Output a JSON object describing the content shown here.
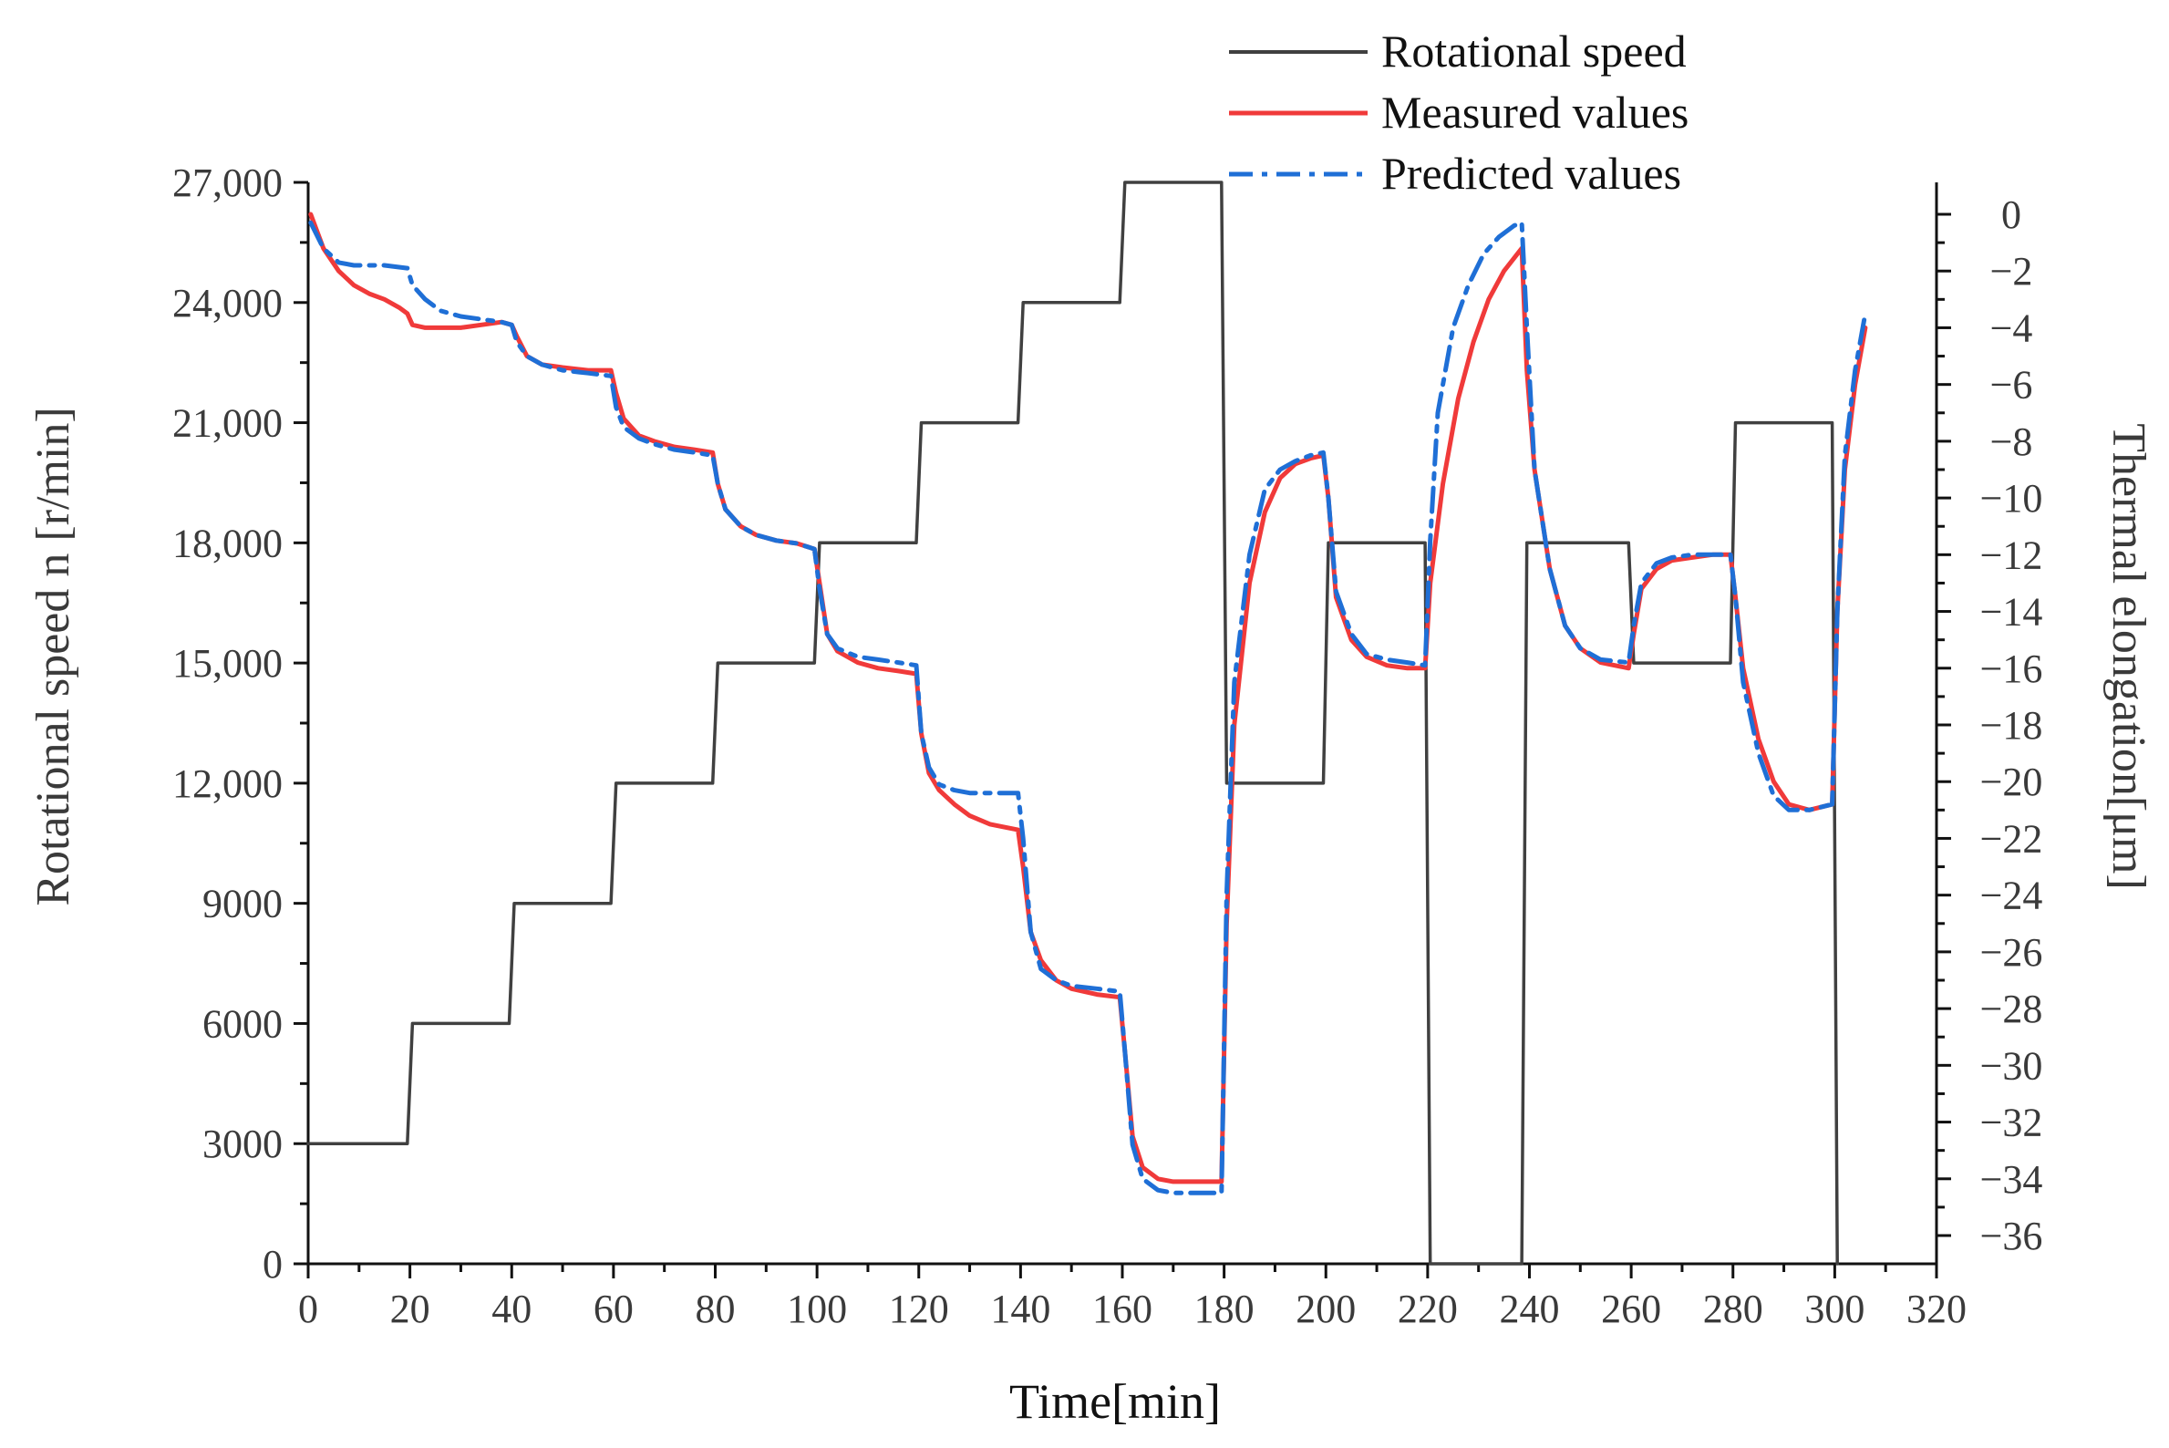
{
  "chart_data": {
    "type": "line",
    "title": "",
    "xlabel": "Time[min]",
    "ylabel_left": "Rotational speed n [r/min]",
    "ylabel_right": "Thermal elongation[μm]",
    "xlim": [
      0,
      320
    ],
    "ylim_left": [
      0,
      27000
    ],
    "ylim_right": [
      -38,
      1
    ],
    "x_ticks": [
      "0",
      "20",
      "40",
      "60",
      "80",
      "100",
      "120",
      "140",
      "160",
      "180",
      "200",
      "220",
      "240",
      "260",
      "280",
      "300",
      "320"
    ],
    "x_tick_values": [
      0,
      20,
      40,
      60,
      80,
      100,
      120,
      140,
      160,
      180,
      200,
      220,
      240,
      260,
      280,
      300,
      320
    ],
    "y_left_ticks": [
      "0",
      "3000",
      "6000",
      "9000",
      "12,000",
      "15,000",
      "18,000",
      "21,000",
      "24,000",
      "27,000"
    ],
    "y_left_tick_values": [
      0,
      3000,
      6000,
      9000,
      12000,
      15000,
      18000,
      21000,
      24000,
      27000
    ],
    "y_right_ticks": [
      "0",
      "−2",
      "−4",
      "−6",
      "−8",
      "−10",
      "−12",
      "−14",
      "−16",
      "−18",
      "−20",
      "−22",
      "−24",
      "−26",
      "−28",
      "−30",
      "−32",
      "−34",
      "−36"
    ],
    "y_right_tick_values": [
      0,
      -2,
      -4,
      -6,
      -8,
      -10,
      -12,
      -14,
      -16,
      -18,
      -20,
      -22,
      -24,
      -26,
      -28,
      -30,
      -32,
      -34,
      -36
    ],
    "grid": false,
    "legend_position": "top-right",
    "legend": [
      "Rotational speed",
      "Measured values",
      "Predicted values"
    ],
    "series": [
      {
        "name": "Rotational speed",
        "axis": "left",
        "color": "#404040",
        "style": "solid",
        "x": [
          0,
          19.5,
          20.5,
          39.5,
          40.5,
          59.5,
          60.5,
          79.5,
          80.5,
          99.5,
          100.5,
          119.5,
          120.5,
          139.5,
          140.5,
          159.5,
          160.5,
          179.5,
          180.5,
          199.5,
          200.5,
          219.5,
          220.5,
          238.5,
          239.5,
          259.5,
          260.5,
          279.5,
          280.5,
          299.5,
          300.5
        ],
        "values": [
          3000,
          3000,
          6000,
          6000,
          9000,
          9000,
          12000,
          12000,
          15000,
          15000,
          18000,
          18000,
          21000,
          21000,
          24000,
          24000,
          27000,
          27000,
          12000,
          12000,
          18000,
          18000,
          0,
          0,
          18000,
          18000,
          15000,
          15000,
          21000,
          21000,
          0
        ]
      },
      {
        "name": "Measured values",
        "axis": "right",
        "color": "#f03a3a",
        "style": "solid",
        "x": [
          0.5,
          3,
          6,
          9,
          12,
          15,
          18,
          19.5,
          20.5,
          23,
          26,
          30,
          34,
          38,
          40,
          41,
          43,
          46,
          50,
          55,
          59.5,
          60.5,
          62,
          65,
          68,
          72,
          76,
          79.5,
          80.5,
          82,
          85,
          88,
          92,
          96,
          99.5,
          100.5,
          102,
          104,
          108,
          112,
          116,
          119.5,
          120.5,
          122,
          124,
          127,
          130,
          134,
          139.5,
          140.5,
          142,
          144,
          147,
          150,
          155,
          159.5,
          160.5,
          162,
          164,
          167,
          170,
          174,
          179.5,
          180.5,
          182,
          185,
          188,
          191,
          194,
          197,
          199.5,
          200.5,
          202,
          205,
          208,
          212,
          216,
          219.5,
          220.5,
          223,
          226,
          229,
          232,
          235,
          238.5,
          239.5,
          241,
          244,
          247,
          250,
          254,
          259.5,
          260.5,
          262,
          265,
          268,
          272,
          276,
          279.5,
          280.5,
          282,
          285,
          288,
          291,
          295,
          299.5,
          300.5,
          302,
          304,
          306
        ],
        "values": [
          0,
          -1.2,
          -2.0,
          -2.5,
          -2.8,
          -3.0,
          -3.3,
          -3.5,
          -3.9,
          -4.0,
          -4.0,
          -4.0,
          -3.9,
          -3.8,
          -3.9,
          -4.3,
          -5.0,
          -5.3,
          -5.4,
          -5.5,
          -5.5,
          -6.3,
          -7.2,
          -7.8,
          -8.0,
          -8.2,
          -8.3,
          -8.4,
          -9.5,
          -10.4,
          -11.0,
          -11.3,
          -11.5,
          -11.6,
          -11.8,
          -13.0,
          -14.8,
          -15.4,
          -15.8,
          -16.0,
          -16.1,
          -16.2,
          -18.3,
          -19.7,
          -20.3,
          -20.8,
          -21.2,
          -21.5,
          -21.7,
          -23.0,
          -25.3,
          -26.3,
          -27.0,
          -27.3,
          -27.5,
          -27.6,
          -29.5,
          -32.5,
          -33.6,
          -34.0,
          -34.1,
          -34.1,
          -34.1,
          -25.0,
          -18.0,
          -13.0,
          -10.5,
          -9.3,
          -8.8,
          -8.6,
          -8.5,
          -10.0,
          -13.5,
          -15.0,
          -15.6,
          -15.9,
          -16.0,
          -16.0,
          -13.0,
          -9.5,
          -6.5,
          -4.5,
          -3.0,
          -2.0,
          -1.2,
          -5.5,
          -9.0,
          -12.5,
          -14.5,
          -15.3,
          -15.8,
          -16.0,
          -14.8,
          -13.2,
          -12.5,
          -12.2,
          -12.1,
          -12.0,
          -12.0,
          -13.5,
          -16.0,
          -18.5,
          -20.0,
          -20.8,
          -21.0,
          -20.8,
          -14.0,
          -9.0,
          -6.0,
          -4.0
        ]
      },
      {
        "name": "Predicted values",
        "axis": "right",
        "color": "#1f6fd6",
        "style": "dashdot",
        "x": [
          0.5,
          3,
          6,
          9,
          12,
          15,
          19.5,
          20.5,
          23,
          26,
          30,
          34,
          38,
          40,
          41,
          43,
          46,
          50,
          55,
          59.5,
          60.5,
          62,
          65,
          68,
          72,
          76,
          79.5,
          80.5,
          82,
          85,
          88,
          92,
          96,
          99.5,
          100.5,
          102,
          104,
          108,
          112,
          116,
          119.5,
          120.5,
          122,
          124,
          127,
          130,
          134,
          139.5,
          140.5,
          142,
          144,
          147,
          150,
          155,
          159.5,
          160.5,
          162,
          164,
          167,
          170,
          174,
          179.5,
          180.5,
          182,
          185,
          188,
          191,
          194,
          197,
          199.5,
          200.5,
          202,
          205,
          208,
          212,
          216,
          219.5,
          220.5,
          222,
          225,
          228,
          231,
          234,
          237,
          238.5,
          239.5,
          241,
          244,
          247,
          250,
          254,
          259.5,
          260.5,
          262,
          265,
          268,
          272,
          276,
          279.5,
          280.5,
          282,
          285,
          288,
          291,
          295,
          299.5,
          300.5,
          302,
          304,
          306
        ],
        "values": [
          -0.3,
          -1.2,
          -1.7,
          -1.8,
          -1.8,
          -1.8,
          -1.9,
          -2.5,
          -3.0,
          -3.4,
          -3.6,
          -3.7,
          -3.8,
          -3.9,
          -4.5,
          -5.0,
          -5.3,
          -5.5,
          -5.6,
          -5.7,
          -6.8,
          -7.5,
          -7.9,
          -8.1,
          -8.3,
          -8.4,
          -8.5,
          -9.5,
          -10.4,
          -11.0,
          -11.3,
          -11.5,
          -11.6,
          -11.8,
          -13.2,
          -14.8,
          -15.3,
          -15.6,
          -15.7,
          -15.8,
          -15.9,
          -18.3,
          -19.5,
          -20.1,
          -20.3,
          -20.4,
          -20.4,
          -20.4,
          -22.0,
          -25.3,
          -26.6,
          -27.0,
          -27.2,
          -27.3,
          -27.4,
          -29.5,
          -32.8,
          -34.0,
          -34.4,
          -34.5,
          -34.5,
          -34.5,
          -24.0,
          -16.5,
          -12.0,
          -9.7,
          -9.0,
          -8.7,
          -8.5,
          -8.4,
          -10.0,
          -13.3,
          -14.8,
          -15.5,
          -15.7,
          -15.8,
          -15.9,
          -11.5,
          -7.0,
          -4.0,
          -2.5,
          -1.4,
          -0.8,
          -0.4,
          -0.3,
          -4.0,
          -9.0,
          -12.5,
          -14.5,
          -15.3,
          -15.7,
          -15.8,
          -14.5,
          -13.0,
          -12.3,
          -12.1,
          -12.0,
          -12.0,
          -12.0,
          -13.5,
          -16.5,
          -19.0,
          -20.5,
          -21.0,
          -21.0,
          -20.8,
          -14.0,
          -8.5,
          -5.5,
          -3.5
        ]
      }
    ]
  }
}
